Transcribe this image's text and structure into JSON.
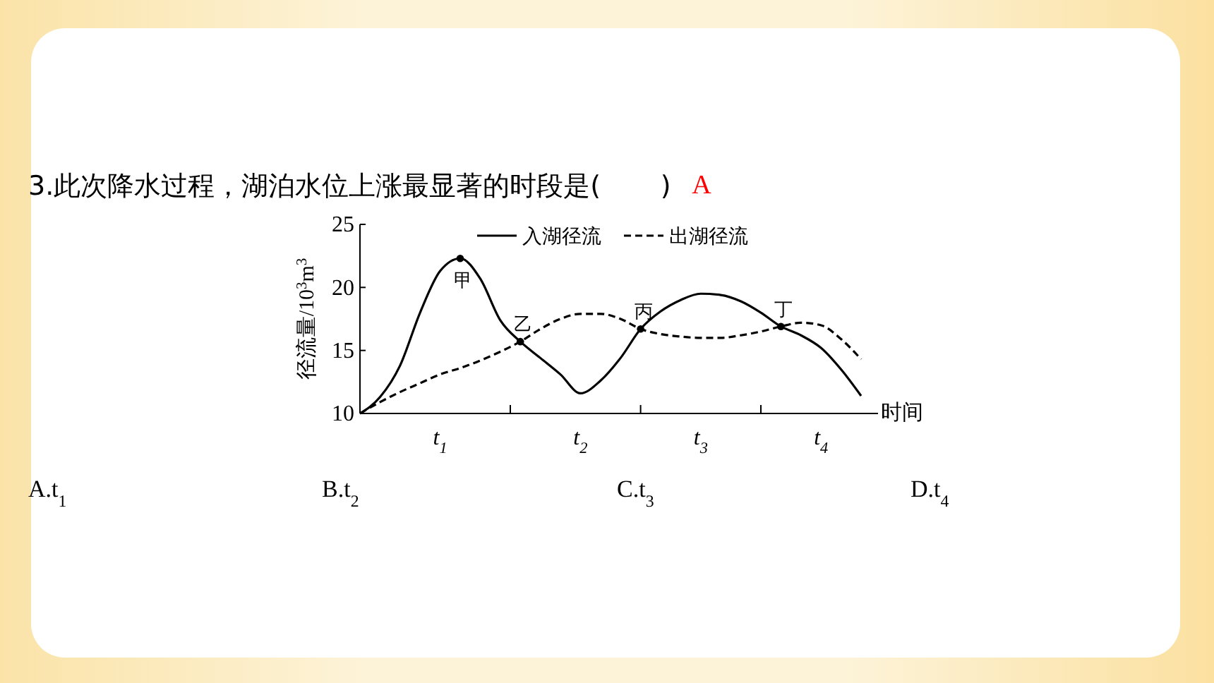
{
  "chart_data": {
    "type": "line",
    "title": "3.此次降水过程，湖泊水位上涨最显著的时段是(       )",
    "xlabel": "时间",
    "ylabel": "径流量/10$^{3}$m$^{3}$",
    "categories": [
      null,
      null,
      null,
      null,
      "t$_{1}$",
      null,
      null,
      null,
      null,
      null,
      null,
      "t$_{2}$",
      null,
      null,
      null,
      null,
      null,
      "t$_{3}$",
      null,
      null,
      null,
      null,
      null,
      "t$_{4}$",
      null,
      null
    ],
    "ylim": [
      10,
      25
    ],
    "yticks": [
      10,
      15,
      20,
      25
    ],
    "legend": "top",
    "series": [
      {
        "name": "入湖径流",
        "color": "#000000",
        "line_style": "solid",
        "values": [
          10,
          11.3,
          13.8,
          18.0,
          21.3,
          22.3,
          20.7,
          17.4,
          15.7,
          14.4,
          13.1,
          11.6,
          12.6,
          14.4,
          16.7,
          18.1,
          19.0,
          19.5,
          19.4,
          18.9,
          18.0,
          16.9,
          16.2,
          15.2,
          13.5,
          11.4
        ]
      },
      {
        "name": "出湖径流",
        "color": "#000000",
        "line_style": "dashed",
        "values": [
          10,
          10.9,
          11.7,
          12.4,
          13.1,
          13.6,
          14.2,
          14.9,
          15.7,
          16.7,
          17.5,
          17.9,
          17.9,
          17.5,
          16.7,
          16.3,
          16.1,
          16.0,
          16.0,
          16.2,
          16.5,
          16.9,
          17.2,
          17.0,
          15.9,
          14.3
        ]
      },
      {
        "type": "scatter",
        "color": "#000000",
        "marker": "circle",
        "values": [
          null,
          null,
          null,
          null,
          null,
          22.3,
          null,
          null,
          15.7,
          null,
          null,
          null,
          null,
          null,
          16.7,
          null,
          null,
          null,
          null,
          null,
          null,
          16.9,
          null,
          null,
          null,
          null
        ]
      }
    ],
    "annotations": [
      "A",
      "A.t$_{1}$",
      "B.t$_{2}$",
      "C.t$_{3}$",
      "D.t$_{4}$",
      {
        "text": "甲",
        "y": 22.3
      },
      {
        "text": "乙",
        "y": 15.7
      },
      {
        "text": "丙",
        "y": 16.7
      },
      {
        "text": "丁",
        "y": 16.9
      }
    ]
  }
}
